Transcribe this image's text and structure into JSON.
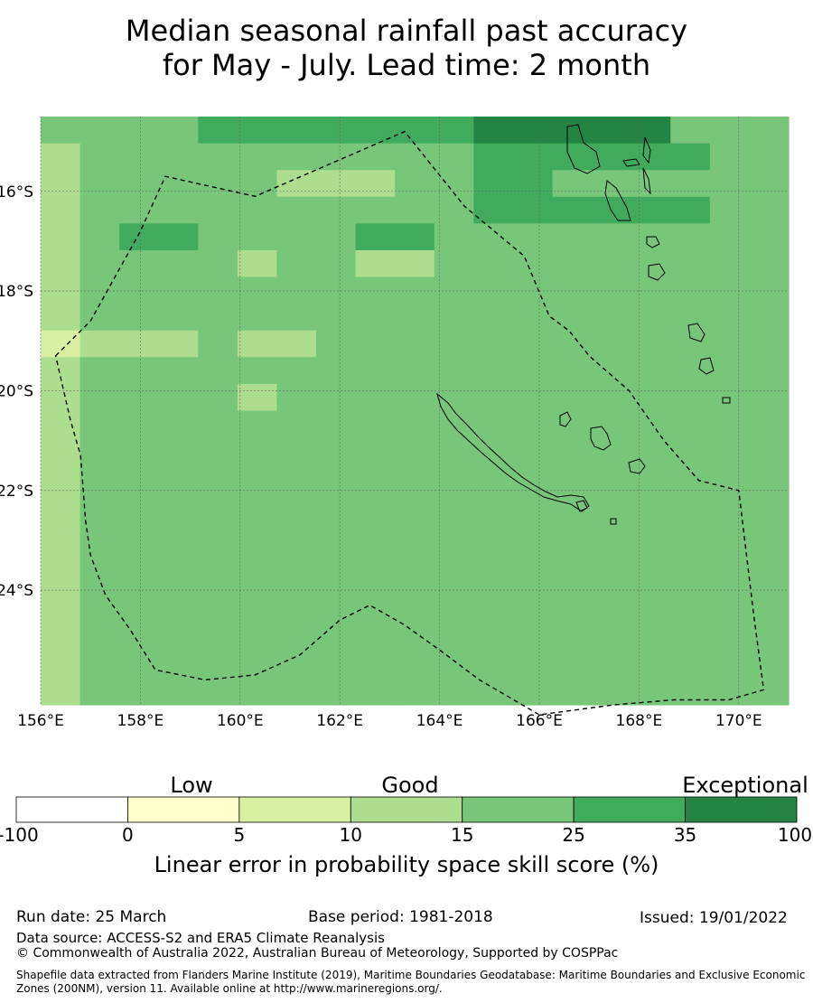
{
  "title": {
    "line1": "Median seasonal rainfall past accuracy",
    "line2": "for May - July. Lead time: 2 month"
  },
  "map": {
    "lon_min": 156,
    "lon_max": 171,
    "lat_top": -14.5,
    "lat_bottom": -26.3,
    "cell_deg_lon": 0.833,
    "cell_deg_lat": 0.556,
    "lon_ticks": [
      "156°E",
      "158°E",
      "160°E",
      "162°E",
      "164°E",
      "166°E",
      "168°E",
      "170°E"
    ],
    "lat_ticks": [
      "16°S",
      "18°S",
      "20°S",
      "22°S",
      "24°S"
    ],
    "grid_levels": [
      "4444555555566666444",
      "3444444444455555544",
      "3444443334455444444",
      "3444444444455555544",
      "3455444455444444444",
      "3444434433444444444",
      "3444444444444444444",
      "3444444444444444444",
      "2333433444444444444",
      "3444444444444444444",
      "3444434444444444444",
      "3444444444444444444",
      "3444444444444444444",
      "3444444444444444444",
      "3444444444444444444",
      "3444444444444444444",
      "3444444444444444444",
      "3444444444444444444",
      "3444444444444444444",
      "3444444444444444444",
      "3444444444444444444",
      "3444444444444444444"
    ],
    "eez_boundary": [
      [
        156.3,
        -19.3
      ],
      [
        157.0,
        -18.6
      ],
      [
        158.0,
        -16.8
      ],
      [
        158.5,
        -15.7
      ],
      [
        160.3,
        -16.1
      ],
      [
        163.3,
        -14.8
      ],
      [
        164.5,
        -16.3
      ],
      [
        165.7,
        -17.3
      ],
      [
        166.2,
        -18.5
      ],
      [
        166.6,
        -18.8
      ],
      [
        167.0,
        -19.3
      ],
      [
        167.8,
        -20.0
      ],
      [
        168.5,
        -21.0
      ],
      [
        169.2,
        -21.8
      ],
      [
        170.0,
        -22.0
      ],
      [
        170.3,
        -24.5
      ],
      [
        170.5,
        -26.0
      ],
      [
        169.8,
        -26.2
      ],
      [
        168.7,
        -26.2
      ],
      [
        167.5,
        -26.3
      ],
      [
        166.0,
        -26.5
      ],
      [
        164.8,
        -25.8
      ],
      [
        164.0,
        -25.2
      ],
      [
        163.3,
        -24.7
      ],
      [
        162.6,
        -24.3
      ],
      [
        162.0,
        -24.6
      ],
      [
        161.2,
        -25.3
      ],
      [
        160.3,
        -25.7
      ],
      [
        159.3,
        -25.8
      ],
      [
        158.3,
        -25.6
      ],
      [
        157.8,
        -24.8
      ],
      [
        157.3,
        -24.1
      ],
      [
        157.0,
        -23.3
      ],
      [
        156.9,
        -22.6
      ],
      [
        156.8,
        -21.3
      ],
      [
        156.6,
        -20.6
      ]
    ]
  },
  "colorbar": {
    "ticks": [
      "-100",
      "0",
      "5",
      "10",
      "15",
      "25",
      "35",
      "100"
    ],
    "colors": [
      "#ffffff",
      "#ffffcc",
      "#d9f0a3",
      "#addd8e",
      "#78c679",
      "#41ab5d",
      "#238443"
    ],
    "categories": [
      "Low",
      "Good",
      "Exceptional"
    ],
    "label": "Linear error in probability space skill score (%)"
  },
  "footer": {
    "run_date": "Run date: 25 March",
    "base_period": "Base period: 1981-2018",
    "issued": "Issued: 19/01/2022",
    "data_source": "Data source: ACCESS-S2 and ERA5 Climate Reanalysis",
    "copyright": "© Commonwealth of Australia 2022, Australian Bureau of Meteorology, Supported by COSPPac",
    "shapefile": "Shapefile data extracted from Flanders Marine Institute (2019), Maritime Boundaries Geodatabase: Maritime Boundaries and Exclusive Economic Zones (200NM), version 11. Available online at http://www.marineregions.org/."
  }
}
